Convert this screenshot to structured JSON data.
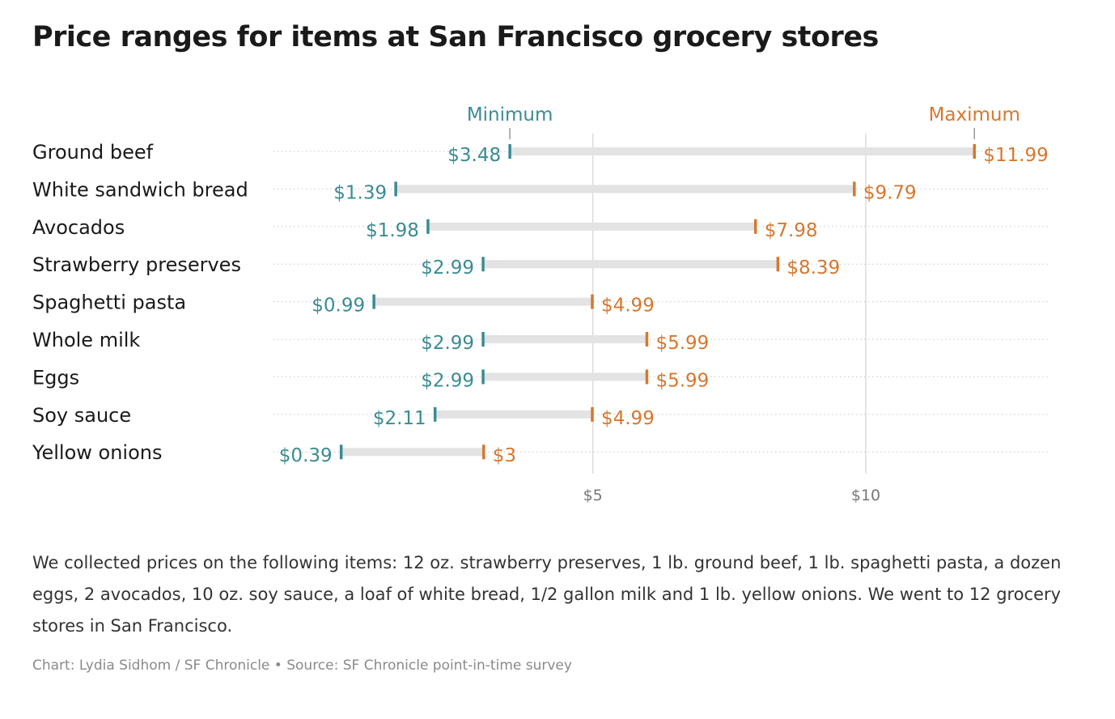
{
  "title": "Price ranges for items at San Francisco grocery stores",
  "note": "We collected prices on the following items: 12 oz. strawberry preserves, 1 lb. ground beef, 1 lb. spaghetti pasta, a dozen eggs, 2 avocados, 10 oz. soy sauce, a loaf of white bread, 1/2 gallon milk and 1 lb. yellow onions. We went to 12 grocery stores in San Francisco.",
  "credit": "Chart: Lydia Sidhom / SF Chronicle • Source: SF Chronicle point-in-time survey",
  "colors": {
    "min": "#3a8c92",
    "max": "#d5782f",
    "bar": "#e3e3e3",
    "grid": "#dcdcdc"
  },
  "chart_data": {
    "type": "range",
    "legend": {
      "min": "Minimum",
      "max": "Maximum",
      "placement": "top"
    },
    "categories": [
      "Ground beef",
      "White sandwich bread",
      "Avocados",
      "Strawberry preserves",
      "Spaghetti pasta",
      "Whole milk",
      "Eggs",
      "Soy sauce",
      "Yellow onions"
    ],
    "series": [
      {
        "name": "Minimum",
        "values": [
          3.48,
          1.39,
          1.98,
          2.99,
          0.99,
          2.99,
          2.99,
          2.11,
          0.39
        ],
        "labels": [
          "$3.48",
          "$1.39",
          "$1.98",
          "$2.99",
          "$0.99",
          "$2.99",
          "$2.99",
          "$2.11",
          "$0.39"
        ]
      },
      {
        "name": "Maximum",
        "values": [
          11.99,
          9.79,
          7.98,
          8.39,
          4.99,
          5.99,
          5.99,
          4.99,
          3
        ],
        "labels": [
          "$11.99",
          "$9.79",
          "$7.98",
          "$8.39",
          "$4.99",
          "$5.99",
          "$5.99",
          "$4.99",
          "$3"
        ]
      }
    ],
    "xlim": [
      -0.85,
      13.35
    ],
    "xticks": [
      5,
      10
    ],
    "xtick_labels": [
      "$5",
      "$10"
    ],
    "grid": true
  }
}
